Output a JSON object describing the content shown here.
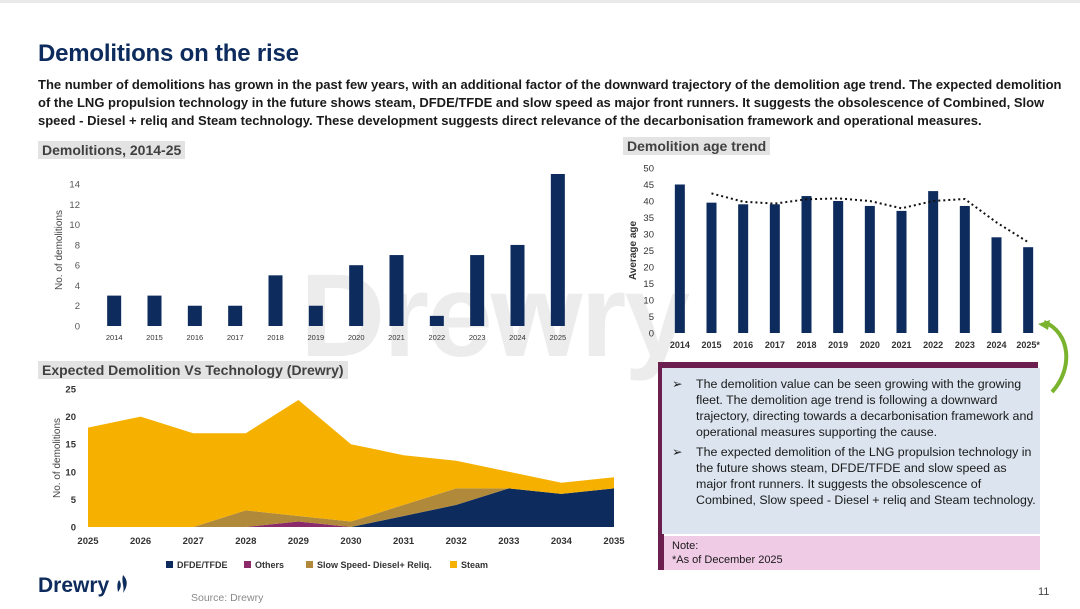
{
  "header": {
    "title": "Demolitions on the rise",
    "subtitle": "The number of demolitions has grown in the past few years, with an additional factor of the downward trajectory of the demolition age trend. The expected demolition of the LNG propulsion technology in the future shows steam, DFDE/TFDE and slow speed as major front runners. It suggests the obsolescence of Combined, Slow speed - Diesel + reliq and Steam technology. These development suggests direct relevance of the decarbonisation framework and operational measures."
  },
  "watermark": "Drewry",
  "chart_data": [
    {
      "type": "bar",
      "title": "Demolitions, 2014-25",
      "ylabel": "No. of demolitions",
      "categories": [
        "2014",
        "2015",
        "2016",
        "2017",
        "2018",
        "2019",
        "2020",
        "2021",
        "2022",
        "2023",
        "2024",
        "2025"
      ],
      "values": [
        3,
        3,
        2,
        2,
        5,
        2,
        6,
        7,
        1,
        7,
        8,
        15
      ],
      "ylim": [
        0,
        15
      ],
      "yticks": [
        0,
        2,
        4,
        6,
        8,
        10,
        12,
        14
      ],
      "color": "#0d2b5c"
    },
    {
      "type": "bar",
      "title": "Demolition age trend",
      "ylabel": "Average age",
      "categories": [
        "2014",
        "2015",
        "2016",
        "2017",
        "2018",
        "2019",
        "2020",
        "2021",
        "2022",
        "2023",
        "2024",
        "2025*"
      ],
      "values": [
        45,
        39.5,
        39,
        39,
        41.5,
        40,
        38.5,
        37,
        43,
        38.5,
        29,
        26
      ],
      "trend": [
        null,
        42.3,
        39.8,
        39.2,
        40.5,
        40.8,
        40.0,
        37.8,
        40.0,
        40.6,
        33.5,
        27.5
      ],
      "ylim": [
        0,
        50
      ],
      "yticks": [
        0,
        5,
        10,
        15,
        20,
        25,
        30,
        35,
        40,
        45,
        50
      ],
      "color": "#0d2b5c"
    },
    {
      "type": "area",
      "title": "Expected Demolition Vs Technology (Drewry)",
      "ylabel": "No. of demolitions",
      "x": [
        "2025",
        "2026",
        "2027",
        "2028",
        "2029",
        "2030",
        "2031",
        "2032",
        "2033",
        "2034",
        "2035"
      ],
      "ylim": [
        0,
        25
      ],
      "yticks": [
        0,
        5,
        10,
        15,
        20,
        25
      ],
      "series": [
        {
          "name": "DFDE/TFDE",
          "color": "#0d2b5c",
          "values": [
            0,
            0,
            0,
            0,
            0,
            0,
            2,
            4,
            7,
            6,
            7
          ]
        },
        {
          "name": "Others",
          "color": "#8b2a6b",
          "values": [
            0,
            0,
            0,
            0,
            1,
            0,
            0,
            0,
            0,
            0,
            0
          ]
        },
        {
          "name": "Slow Speed- Diesel+ Reliq.",
          "color": "#b08a3a",
          "values": [
            0,
            0,
            0,
            3,
            1,
            1,
            2,
            3,
            0,
            0,
            0
          ]
        },
        {
          "name": "Steam",
          "color": "#f6b100",
          "values": [
            18,
            20,
            17,
            14,
            21,
            14,
            9,
            5,
            3,
            2,
            2
          ]
        }
      ]
    }
  ],
  "panel": {
    "bullets": [
      "The demolition value can be seen growing with the growing fleet. The demolition age trend is following a downward trajectory, directing towards a decarbonisation framework and operational measures supporting the cause.",
      "The expected demolition of the LNG propulsion technology in the future shows steam, DFDE/TFDE and slow speed as major front runners. It suggests the obsolescence of Combined, Slow speed - Diesel + reliq and Steam technology."
    ],
    "bullet_glyph": "➢",
    "note_title": "Note:",
    "note_text": "*As of December 2025"
  },
  "footer": {
    "logo": "Drewry",
    "logo_icon": "flame-icon",
    "source": "Source: Drewry",
    "page_number": "11"
  }
}
